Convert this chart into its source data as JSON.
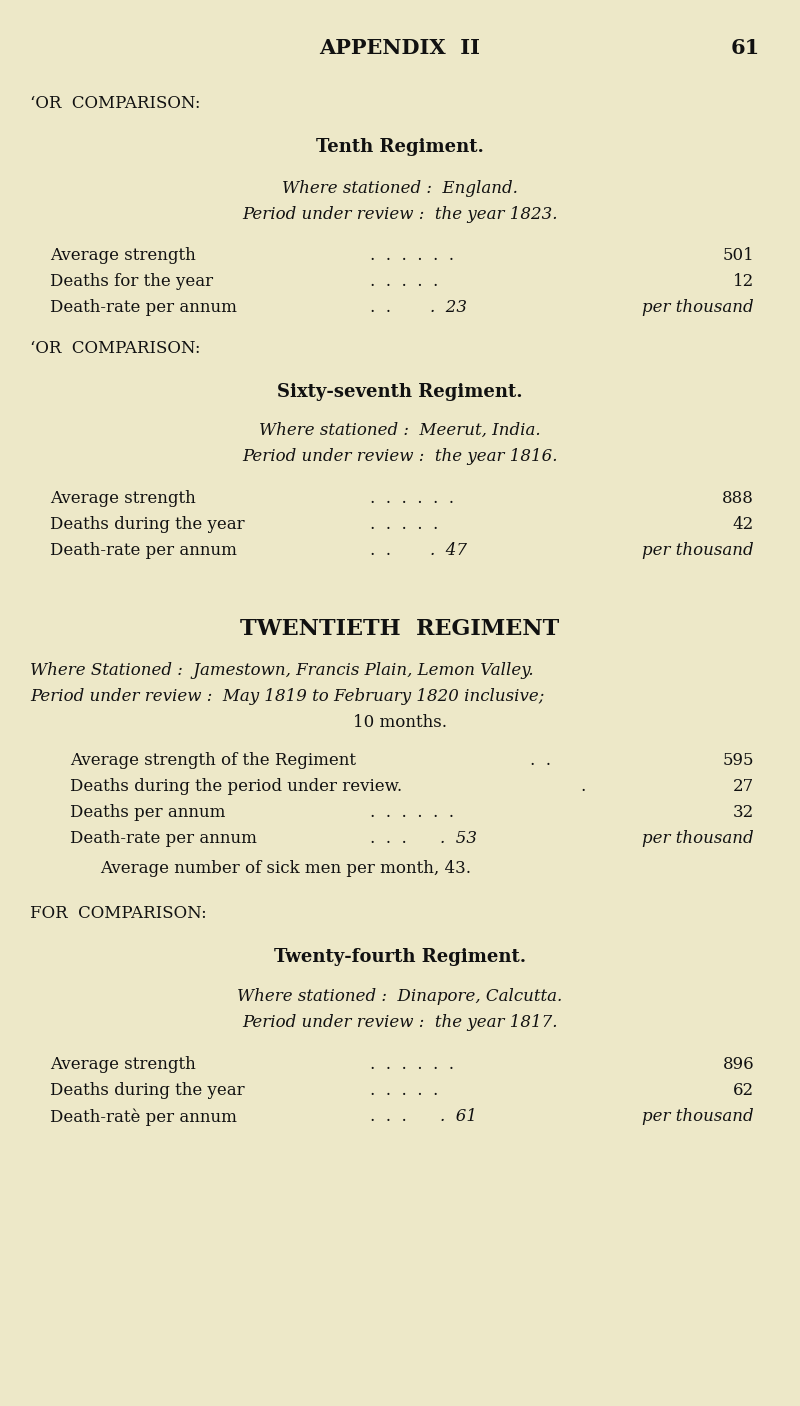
{
  "bg_color": "#ede8c8",
  "text_color": "#111111",
  "fig_w": 8.0,
  "fig_h": 14.06,
  "dpi": 100
}
